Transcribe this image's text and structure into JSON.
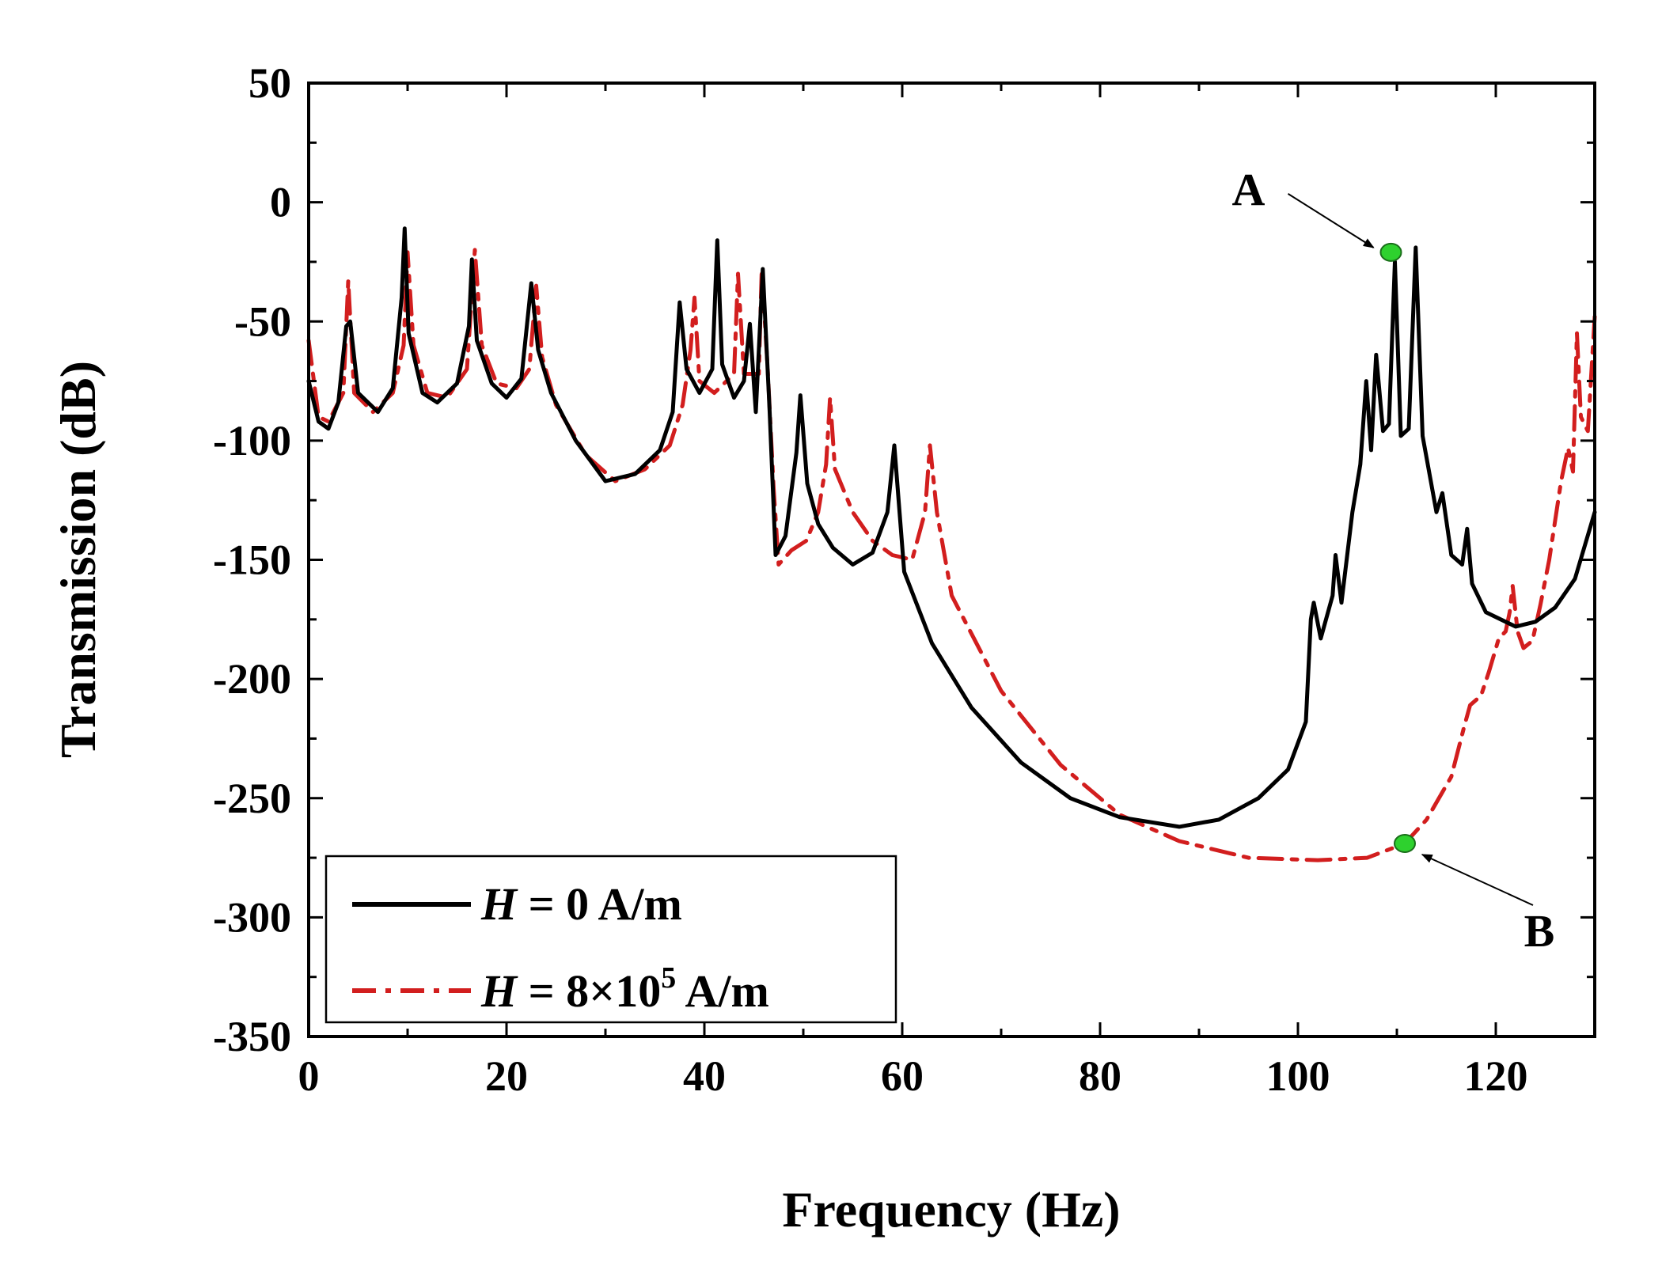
{
  "chart_data": {
    "type": "line",
    "title": "",
    "xlabel": "Frequency (Hz)",
    "ylabel": "Transmission (dB)",
    "xlim": [
      0,
      130
    ],
    "ylim": [
      -350,
      50
    ],
    "xticks": [
      0,
      20,
      40,
      60,
      80,
      100,
      120
    ],
    "yticks": [
      50,
      0,
      -50,
      -100,
      -150,
      -200,
      -250,
      -300,
      -350
    ],
    "grid": false,
    "legend_position": "bottom-left",
    "series": [
      {
        "name": "H = 0 A/m",
        "legend": {
          "italic": "H",
          "rest": " = 0 A/m",
          "exp": ""
        },
        "color": "#000000",
        "style": "solid",
        "points": [
          [
            0,
            -75
          ],
          [
            1,
            -92
          ],
          [
            2,
            -95
          ],
          [
            3,
            -84
          ],
          [
            3.8,
            -52
          ],
          [
            4.2,
            -50
          ],
          [
            5,
            -80
          ],
          [
            7,
            -88
          ],
          [
            8.5,
            -78
          ],
          [
            9.4,
            -40
          ],
          [
            9.7,
            -11
          ],
          [
            10.1,
            -55
          ],
          [
            11.5,
            -80
          ],
          [
            13,
            -84
          ],
          [
            15,
            -76
          ],
          [
            16.2,
            -52
          ],
          [
            16.5,
            -24
          ],
          [
            17,
            -58
          ],
          [
            18.5,
            -76
          ],
          [
            20,
            -82
          ],
          [
            21.5,
            -74
          ],
          [
            22.5,
            -34
          ],
          [
            23.2,
            -62
          ],
          [
            24.5,
            -80
          ],
          [
            27,
            -100
          ],
          [
            30,
            -117
          ],
          [
            33,
            -114
          ],
          [
            35.5,
            -104
          ],
          [
            36.8,
            -88
          ],
          [
            37.5,
            -42
          ],
          [
            38.2,
            -70
          ],
          [
            39.5,
            -80
          ],
          [
            40.8,
            -70
          ],
          [
            41.3,
            -16
          ],
          [
            41.8,
            -68
          ],
          [
            43,
            -82
          ],
          [
            44,
            -75
          ],
          [
            44.6,
            -51
          ],
          [
            45.2,
            -88
          ],
          [
            45.9,
            -28
          ],
          [
            46.6,
            -88
          ],
          [
            47.2,
            -148
          ],
          [
            48.2,
            -140
          ],
          [
            49.3,
            -105
          ],
          [
            49.7,
            -81
          ],
          [
            50.4,
            -118
          ],
          [
            51.5,
            -135
          ],
          [
            53,
            -145
          ],
          [
            55,
            -152
          ],
          [
            57,
            -147
          ],
          [
            58.5,
            -130
          ],
          [
            59.2,
            -102
          ],
          [
            60.2,
            -155
          ],
          [
            63,
            -185
          ],
          [
            67,
            -212
          ],
          [
            72,
            -235
          ],
          [
            77,
            -250
          ],
          [
            82,
            -258
          ],
          [
            88,
            -262
          ],
          [
            92,
            -259
          ],
          [
            96,
            -250
          ],
          [
            99,
            -238
          ],
          [
            100.8,
            -218
          ],
          [
            101.3,
            -175
          ],
          [
            101.6,
            -168
          ],
          [
            102.3,
            -183
          ],
          [
            103.5,
            -165
          ],
          [
            103.8,
            -148
          ],
          [
            104.4,
            -168
          ],
          [
            105.5,
            -130
          ],
          [
            106.3,
            -110
          ],
          [
            106.9,
            -75
          ],
          [
            107.4,
            -104
          ],
          [
            107.9,
            -64
          ],
          [
            108.6,
            -96
          ],
          [
            109.2,
            -93
          ],
          [
            109.8,
            -25
          ],
          [
            110.4,
            -98
          ],
          [
            111.2,
            -95
          ],
          [
            111.9,
            -19
          ],
          [
            112.6,
            -98
          ],
          [
            114,
            -130
          ],
          [
            114.6,
            -122
          ],
          [
            115.5,
            -148
          ],
          [
            116.6,
            -152
          ],
          [
            117.1,
            -137
          ],
          [
            117.6,
            -160
          ],
          [
            119,
            -172
          ],
          [
            122,
            -178
          ],
          [
            124,
            -176
          ],
          [
            126,
            -170
          ],
          [
            128,
            -158
          ],
          [
            130,
            -130
          ]
        ]
      },
      {
        "name": "H = 8×10^5 A/m",
        "legend": {
          "italic": "H",
          "rest": " = 8×10",
          "exp": "5",
          "suffix": " A/m"
        },
        "color": "#d21e1e",
        "style": "dashdot",
        "points": [
          [
            0,
            -58
          ],
          [
            1,
            -90
          ],
          [
            2,
            -92
          ],
          [
            3.5,
            -80
          ],
          [
            4,
            -33
          ],
          [
            4.6,
            -80
          ],
          [
            6.5,
            -88
          ],
          [
            8.5,
            -80
          ],
          [
            9.6,
            -60
          ],
          [
            10,
            -21
          ],
          [
            10.6,
            -60
          ],
          [
            12,
            -80
          ],
          [
            14,
            -82
          ],
          [
            16,
            -70
          ],
          [
            16.8,
            -20
          ],
          [
            17.5,
            -60
          ],
          [
            19,
            -76
          ],
          [
            21,
            -78
          ],
          [
            22.3,
            -70
          ],
          [
            23,
            -35
          ],
          [
            23.6,
            -65
          ],
          [
            25,
            -85
          ],
          [
            28,
            -106
          ],
          [
            31,
            -117
          ],
          [
            34,
            -112
          ],
          [
            36.5,
            -102
          ],
          [
            37.8,
            -85
          ],
          [
            38.6,
            -62
          ],
          [
            39,
            -40
          ],
          [
            39.5,
            -75
          ],
          [
            41,
            -80
          ],
          [
            43,
            -72
          ],
          [
            43.4,
            -30
          ],
          [
            44,
            -72
          ],
          [
            45.5,
            -72
          ],
          [
            45.8,
            -28
          ],
          [
            46.4,
            -70
          ],
          [
            47,
            -120
          ],
          [
            47.5,
            -152
          ],
          [
            48.8,
            -146
          ],
          [
            50.3,
            -142
          ],
          [
            51.5,
            -130
          ],
          [
            52.3,
            -110
          ],
          [
            52.7,
            -82
          ],
          [
            53.2,
            -112
          ],
          [
            55,
            -130
          ],
          [
            57,
            -142
          ],
          [
            59,
            -148
          ],
          [
            61,
            -150
          ],
          [
            62.3,
            -130
          ],
          [
            62.8,
            -102
          ],
          [
            63.5,
            -130
          ],
          [
            65,
            -165
          ],
          [
            70,
            -205
          ],
          [
            76,
            -236
          ],
          [
            82,
            -257
          ],
          [
            88,
            -268
          ],
          [
            95,
            -275
          ],
          [
            102,
            -276
          ],
          [
            107,
            -275
          ],
          [
            110.8,
            -269
          ],
          [
            113,
            -259
          ],
          [
            115.5,
            -241
          ],
          [
            116.8,
            -220
          ],
          [
            117.4,
            -211
          ],
          [
            118.5,
            -207
          ],
          [
            119.3,
            -197
          ],
          [
            120.3,
            -183
          ],
          [
            121,
            -180
          ],
          [
            121.4,
            -172
          ],
          [
            121.7,
            -161
          ],
          [
            122.2,
            -180
          ],
          [
            122.8,
            -187
          ],
          [
            123.7,
            -184
          ],
          [
            124.5,
            -169
          ],
          [
            125.4,
            -150
          ],
          [
            126.6,
            -117
          ],
          [
            127.3,
            -103
          ],
          [
            127.8,
            -113
          ],
          [
            128.2,
            -55
          ],
          [
            128.6,
            -90
          ],
          [
            129.3,
            -96
          ],
          [
            130,
            -48
          ]
        ]
      }
    ],
    "annotations": [
      {
        "label": "A",
        "x": 109.4,
        "y": -21,
        "marker_color": "#2ed12e"
      },
      {
        "label": "B",
        "x": 110.8,
        "y": -269,
        "marker_color": "#2ed12e"
      }
    ]
  }
}
